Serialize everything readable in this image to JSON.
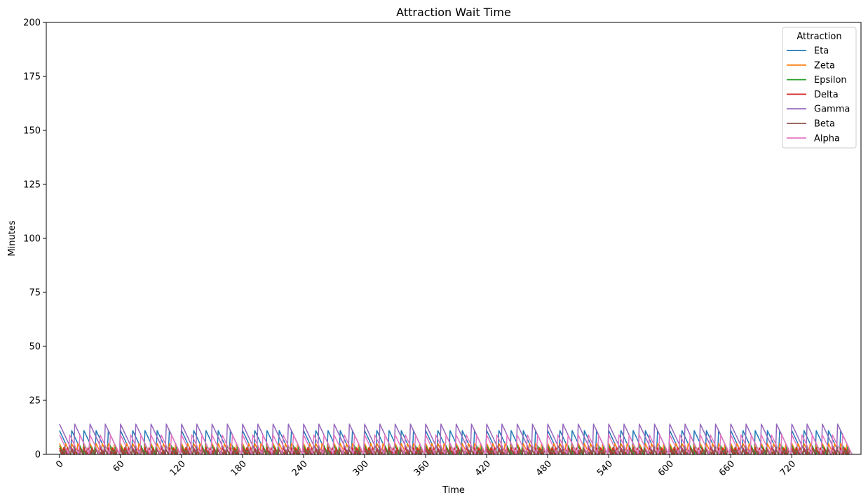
{
  "chart_data": {
    "type": "line",
    "title": "Attraction Wait Time",
    "xlabel": "Time",
    "ylabel": "Minutes",
    "xlim": [
      -13,
      788
    ],
    "ylim": [
      0,
      200
    ],
    "xticks": [
      0,
      60,
      120,
      180,
      240,
      300,
      360,
      420,
      480,
      540,
      600,
      660,
      720
    ],
    "yticks": [
      0,
      25,
      50,
      75,
      100,
      125,
      150,
      175,
      200
    ],
    "xtick_rotation": 45,
    "grid": false,
    "legend": {
      "title": "Attraction",
      "position": "top-right"
    },
    "series": [
      {
        "name": "Eta",
        "color": "#1f77b4",
        "period": 12,
        "peak": 11,
        "phase": 0
      },
      {
        "name": "Zeta",
        "color": "#ff7f0e",
        "period": 6,
        "peak": 5,
        "phase": 0
      },
      {
        "name": "Epsilon",
        "color": "#2ca02c",
        "period": 5,
        "peak": 4,
        "phase": 0
      },
      {
        "name": "Delta",
        "color": "#d62728",
        "period": 4,
        "peak": 3,
        "phase": 0
      },
      {
        "name": "Gamma",
        "color": "#9467bd",
        "period": 15,
        "peak": 14,
        "phase": 0
      },
      {
        "name": "Beta",
        "color": "#8c564b",
        "period": 3,
        "peak": 2,
        "phase": 0
      },
      {
        "name": "Alpha",
        "color": "#e377c2",
        "period": 10,
        "peak": 9,
        "phase": 0
      }
    ],
    "x_range": [
      0,
      779
    ]
  }
}
